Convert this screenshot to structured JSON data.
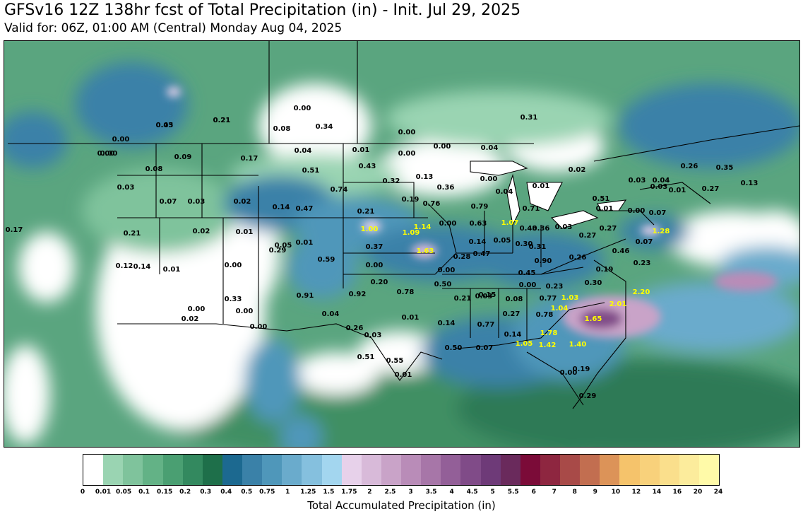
{
  "title": "GFSv16 12Z 138hr fcst of Total Precipitation (in) - Init. Jul 29, 2025",
  "subtitle": "Valid for: 06Z, 01:00 AM (Central) Monday Aug 04, 2025",
  "colorbar": {
    "label": "Total Accumulated Precipitation (in)",
    "ticks": [
      "0",
      "0.01",
      "0.05",
      "0.1",
      "0.15",
      "0.2",
      "0.3",
      "0.4",
      "0.5",
      "0.75",
      "1",
      "1.25",
      "1.5",
      "1.75",
      "2",
      "2.5",
      "3",
      "3.5",
      "4",
      "4.5",
      "5",
      "5.5",
      "6",
      "7",
      "8",
      "9",
      "10",
      "12",
      "14",
      "16",
      "20",
      "24"
    ],
    "colors": [
      "#ffffff",
      "#9ad4b2",
      "#7fc39c",
      "#63b286",
      "#4a9f72",
      "#33895f",
      "#1e6f4a",
      "#1c6990",
      "#3a81a8",
      "#4f97ba",
      "#6aabcc",
      "#85c0de",
      "#a3d6ef",
      "#e7d1ea",
      "#d8bad9",
      "#c9a3c8",
      "#b98cb8",
      "#a776a8",
      "#935f98",
      "#804b88",
      "#6e3a78",
      "#6a2a5c",
      "#7b0b38",
      "#8e2640",
      "#a84a48",
      "#c26e50",
      "#dc9358",
      "#f5c36b",
      "#f8d17b",
      "#fadf8c",
      "#fcec9c",
      "#fffaa8"
    ]
  },
  "map_values": {
    "black": [
      "0.43",
      "0.21",
      "0.00",
      "0.08",
      "0.34",
      "0.00",
      "0.00",
      "0.00",
      "0.00",
      "0.04",
      "0.31",
      "0.09",
      "0.17",
      "0.04",
      "0.01",
      "0.00",
      "0.00",
      "0.08",
      "0.51",
      "0.43",
      "0.02",
      "0.03",
      "0.07",
      "0.03",
      "0.02",
      "0.14",
      "0.47",
      "0.32",
      "0.13",
      "0.36",
      "0.00",
      "0.04",
      "0.01",
      "0.03",
      "0.03",
      "0.04",
      "0.26",
      "0.35",
      "0.13",
      "0.01",
      "0.27",
      "0.05",
      "0.21",
      "0.74",
      "0.19",
      "0.76",
      "0.79",
      "0.51",
      "0.01",
      "0.00",
      "0.07",
      "0.17",
      "0.21",
      "0.02",
      "0.01",
      "0.00",
      "0.63",
      "0.71",
      "0.03",
      "0.36",
      "0.27",
      "0.27",
      "0.01",
      "0.14",
      "0.48",
      "0.29",
      "0.37",
      "0.05",
      "0.30",
      "0.31",
      "0.46",
      "0.07",
      "0.59",
      "0.28",
      "0.47",
      "0.90",
      "0.26",
      "0.12",
      "0.14",
      "0.01",
      "0.00",
      "0.00",
      "0.00",
      "0.23",
      "0.19",
      "0.45",
      "0.33",
      "0.20",
      "0.00",
      "0.30",
      "0.92",
      "0.78",
      "0.50",
      "0.03",
      "0.23",
      "0.91",
      "0.21",
      "0.15",
      "0.08",
      "0.77",
      "0.00",
      "0.00",
      "0.04",
      "0.27",
      "0.78",
      "0.02",
      "0.00",
      "0.01",
      "0.14",
      "0.77",
      "0.26",
      "0.03",
      "0.14",
      "0.50",
      "0.07",
      "0.51",
      "0.55",
      "0.01",
      "0.19",
      "0.00",
      "0.29",
      "0.05",
      "0.21"
    ],
    "yellow": [
      "1.00",
      "1.09",
      "1.14",
      "1.63",
      "1.07",
      "1.28",
      "2.20",
      "2.01",
      "1.04",
      "1.03",
      "1.65",
      "1.78",
      "1.05",
      "1.42",
      "1.40"
    ]
  }
}
